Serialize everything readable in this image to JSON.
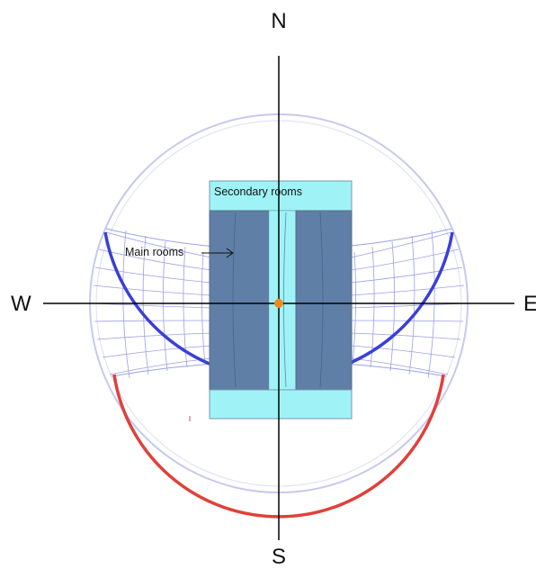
{
  "compass": {
    "north": "N",
    "south": "S",
    "west": "W",
    "east": "E"
  },
  "labels": {
    "secondary_rooms": "Secondary rooms",
    "main_rooms": "Main rooms"
  },
  "colors": {
    "sun_path_outline": "#aab0e6",
    "grid": "#7a7fe0",
    "winter_arc": "#3a3fd8",
    "summer_arc": "#e0403a",
    "secondary_room_fill": "#9ff3f6",
    "main_room_fill": "#5f7fa6",
    "center_marker": "#f08a1a",
    "axis": "#000000"
  }
}
